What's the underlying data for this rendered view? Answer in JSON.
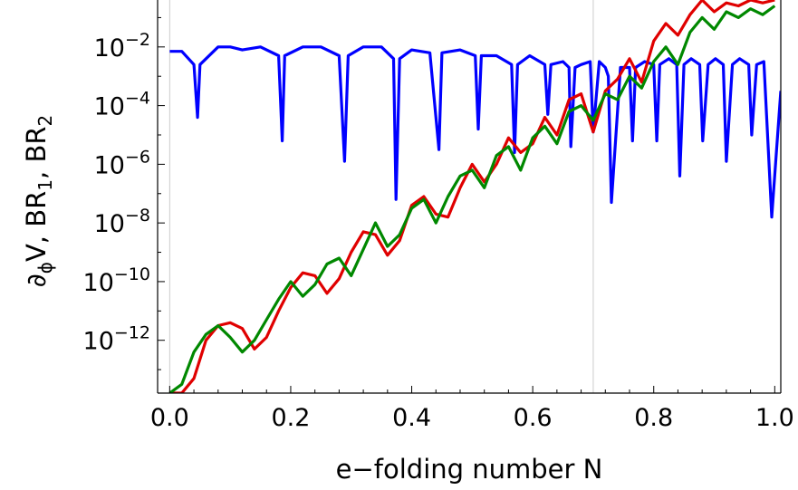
{
  "chart_data": {
    "type": "line",
    "xlabel": "e−folding number N",
    "ylabel_parts": {
      "partial": "∂",
      "sub_phi": "ϕ",
      "v": "V, BR",
      "sub_1": "1",
      "mid": ", BR",
      "sub_2": "2"
    },
    "y_scale": "log",
    "xlim": [
      -0.02,
      1.01
    ],
    "ylim_log10": [
      -13.8,
      -0.4
    ],
    "x_ticks": [
      {
        "value": 0.0,
        "label": "0.0"
      },
      {
        "value": 0.2,
        "label": "0.2"
      },
      {
        "value": 0.4,
        "label": "0.4"
      },
      {
        "value": 0.6,
        "label": "0.6"
      },
      {
        "value": 0.8,
        "label": "0.8"
      },
      {
        "value": 1.0,
        "label": "1.0"
      }
    ],
    "y_ticks": [
      {
        "exp": -2,
        "base": "10",
        "sup": "−2"
      },
      {
        "exp": -4,
        "base": "10",
        "sup": "−4"
      },
      {
        "exp": -6,
        "base": "10",
        "sup": "−6"
      },
      {
        "exp": -8,
        "base": "10",
        "sup": "−8"
      },
      {
        "exp": -10,
        "base": "10",
        "sup": "−10"
      },
      {
        "exp": -12,
        "base": "10",
        "sup": "−12"
      }
    ],
    "vertical_reference_lines": [
      0.0,
      0.7
    ],
    "series": [
      {
        "color": "#0000ff",
        "x": [
          0.0,
          0.02,
          0.04,
          0.046,
          0.05,
          0.08,
          0.1,
          0.12,
          0.15,
          0.18,
          0.186,
          0.19,
          0.22,
          0.25,
          0.28,
          0.289,
          0.295,
          0.32,
          0.35,
          0.37,
          0.374,
          0.38,
          0.4,
          0.43,
          0.445,
          0.45,
          0.48,
          0.505,
          0.51,
          0.515,
          0.54,
          0.565,
          0.57,
          0.575,
          0.595,
          0.62,
          0.625,
          0.63,
          0.65,
          0.66,
          0.663,
          0.67,
          0.68,
          0.695,
          0.7,
          0.71,
          0.72,
          0.725,
          0.73,
          0.745,
          0.76,
          0.765,
          0.77,
          0.785,
          0.8,
          0.805,
          0.81,
          0.825,
          0.838,
          0.843,
          0.85,
          0.862,
          0.876,
          0.881,
          0.89,
          0.902,
          0.915,
          0.92,
          0.93,
          0.942,
          0.957,
          0.962,
          0.97,
          0.982,
          0.995,
          1.01
        ],
        "log10_y": [
          -2.15,
          -2.15,
          -2.6,
          -4.4,
          -2.6,
          -2.0,
          -2.0,
          -2.1,
          -2.0,
          -2.3,
          -5.2,
          -2.3,
          -2.0,
          -2.0,
          -2.3,
          -5.9,
          -2.3,
          -2.0,
          -2.0,
          -2.4,
          -7.2,
          -2.4,
          -2.1,
          -2.2,
          -5.5,
          -2.2,
          -2.1,
          -2.3,
          -4.8,
          -2.3,
          -2.3,
          -2.6,
          -5.6,
          -2.6,
          -2.3,
          -2.6,
          -4.3,
          -2.6,
          -2.5,
          -2.7,
          -5.4,
          -2.7,
          -2.6,
          -2.5,
          -4.9,
          -2.5,
          -2.7,
          -3.0,
          -7.3,
          -2.7,
          -2.7,
          -5.2,
          -2.7,
          -2.5,
          -2.6,
          -5.2,
          -2.6,
          -2.4,
          -2.6,
          -6.4,
          -2.6,
          -2.4,
          -2.6,
          -5.2,
          -2.6,
          -2.4,
          -2.6,
          -5.9,
          -2.6,
          -2.4,
          -2.6,
          -5.0,
          -2.6,
          -2.5,
          -7.8,
          -3.5
        ]
      },
      {
        "color": "#e00000",
        "x": [
          0.0,
          0.02,
          0.04,
          0.06,
          0.08,
          0.1,
          0.12,
          0.14,
          0.16,
          0.18,
          0.2,
          0.22,
          0.24,
          0.26,
          0.28,
          0.3,
          0.32,
          0.34,
          0.36,
          0.38,
          0.4,
          0.42,
          0.44,
          0.46,
          0.48,
          0.5,
          0.52,
          0.54,
          0.56,
          0.58,
          0.6,
          0.62,
          0.64,
          0.66,
          0.68,
          0.7,
          0.72,
          0.74,
          0.76,
          0.78,
          0.8,
          0.82,
          0.84,
          0.86,
          0.88,
          0.9,
          0.92,
          0.94,
          0.96,
          0.98,
          1.0
        ],
        "log10_y": [
          -13.8,
          -13.8,
          -13.3,
          -12.0,
          -11.5,
          -11.4,
          -11.6,
          -12.3,
          -11.9,
          -11.0,
          -10.2,
          -9.7,
          -9.8,
          -10.4,
          -9.9,
          -9.0,
          -8.3,
          -8.4,
          -9.1,
          -8.6,
          -7.4,
          -7.1,
          -7.7,
          -7.8,
          -6.8,
          -6.0,
          -6.6,
          -6.0,
          -5.1,
          -5.6,
          -5.3,
          -4.4,
          -5.0,
          -3.8,
          -3.6,
          -4.9,
          -3.5,
          -3.1,
          -2.4,
          -3.2,
          -1.8,
          -1.2,
          -1.6,
          -0.9,
          -0.4,
          -0.8,
          -0.5,
          -0.6,
          -0.4,
          -0.5,
          -0.4
        ]
      },
      {
        "color": "#008800",
        "x": [
          0.0,
          0.02,
          0.04,
          0.06,
          0.08,
          0.1,
          0.12,
          0.14,
          0.16,
          0.18,
          0.2,
          0.22,
          0.24,
          0.26,
          0.28,
          0.3,
          0.32,
          0.34,
          0.36,
          0.38,
          0.4,
          0.42,
          0.44,
          0.46,
          0.48,
          0.5,
          0.52,
          0.54,
          0.56,
          0.58,
          0.6,
          0.62,
          0.64,
          0.66,
          0.68,
          0.7,
          0.72,
          0.74,
          0.76,
          0.78,
          0.8,
          0.82,
          0.84,
          0.86,
          0.88,
          0.9,
          0.92,
          0.94,
          0.96,
          0.98,
          1.0
        ],
        "log10_y": [
          -13.8,
          -13.5,
          -12.4,
          -11.8,
          -11.5,
          -11.9,
          -12.4,
          -12.0,
          -11.3,
          -10.6,
          -10.0,
          -10.5,
          -10.1,
          -9.4,
          -9.2,
          -9.8,
          -8.9,
          -8.0,
          -8.8,
          -8.4,
          -7.5,
          -7.2,
          -8.0,
          -7.1,
          -6.4,
          -6.2,
          -6.8,
          -5.7,
          -5.4,
          -6.2,
          -5.1,
          -4.7,
          -5.3,
          -4.2,
          -4.0,
          -4.5,
          -3.6,
          -3.8,
          -3.0,
          -3.4,
          -2.5,
          -2.0,
          -2.6,
          -1.5,
          -1.0,
          -1.4,
          -0.8,
          -1.0,
          -0.7,
          -0.9,
          -0.6
        ]
      }
    ]
  }
}
